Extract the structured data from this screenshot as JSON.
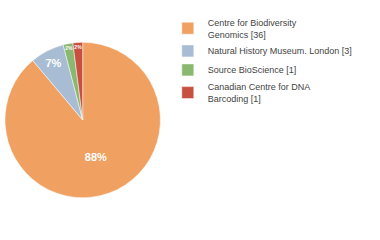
{
  "chart_data": {
    "type": "pie",
    "categories": [
      "Centre for Biodiversity\nGenomics [36]",
      "Natural History Museum. London [3]",
      "Source BioScience [1]",
      "Canadian Centre for DNA\nBarcoding [1]"
    ],
    "values": [
      88,
      7,
      2,
      2
    ],
    "value_labels": [
      "88%",
      "7%",
      "2%",
      "2%"
    ],
    "colors": [
      "#f0a060",
      "#a8bdd4",
      "#8ab870",
      "#c85040"
    ],
    "data_labels": true,
    "legend": "right"
  }
}
